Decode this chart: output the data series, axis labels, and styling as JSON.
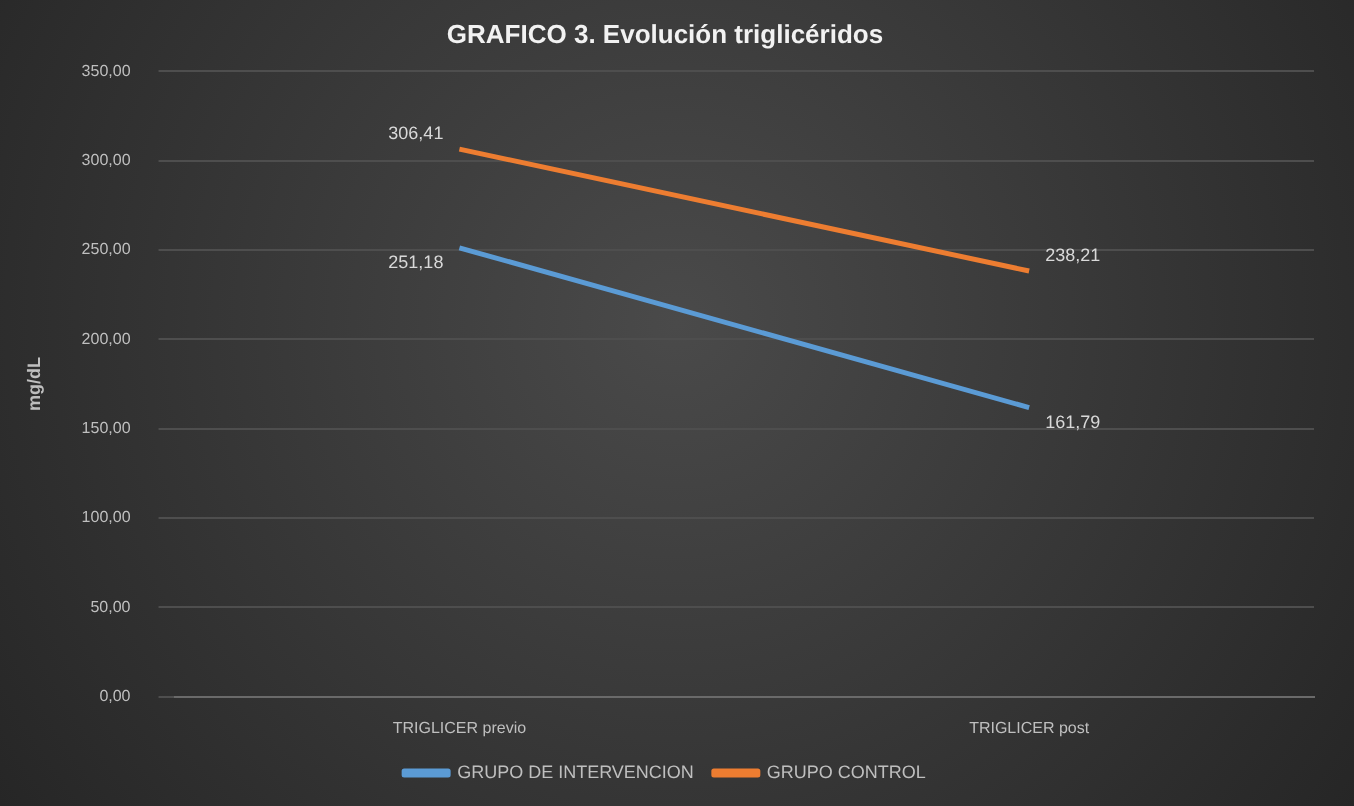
{
  "chart_data": {
    "type": "line",
    "title": "GRAFICO 3. Evolución triglicéridos",
    "ylabel": "mg/dL",
    "categories": [
      "TRIGLICER previo",
      "TRIGLICER post"
    ],
    "series": [
      {
        "name": "GRUPO DE INTERVENCION",
        "color": "#5b9bd5",
        "values": [
          251.18,
          161.79
        ],
        "value_labels": [
          "251,18",
          "161,79"
        ]
      },
      {
        "name": "GRUPO CONTROL",
        "color": "#ed7d31",
        "values": [
          306.41,
          238.21
        ],
        "value_labels": [
          "306,41",
          "238,21"
        ]
      }
    ],
    "ylim": [
      0,
      350
    ],
    "yticks": [
      {
        "value": 0,
        "label": "0,00"
      },
      {
        "value": 50,
        "label": "50,00"
      },
      {
        "value": 100,
        "label": "100,00"
      },
      {
        "value": 150,
        "label": "150,00"
      },
      {
        "value": 200,
        "label": "200,00"
      },
      {
        "value": 250,
        "label": "250,00"
      },
      {
        "value": 300,
        "label": "300,00"
      },
      {
        "value": 350,
        "label": "350,00"
      }
    ],
    "grid": "y",
    "legend": "bottom",
    "marker": "none",
    "line_style": "solid"
  }
}
